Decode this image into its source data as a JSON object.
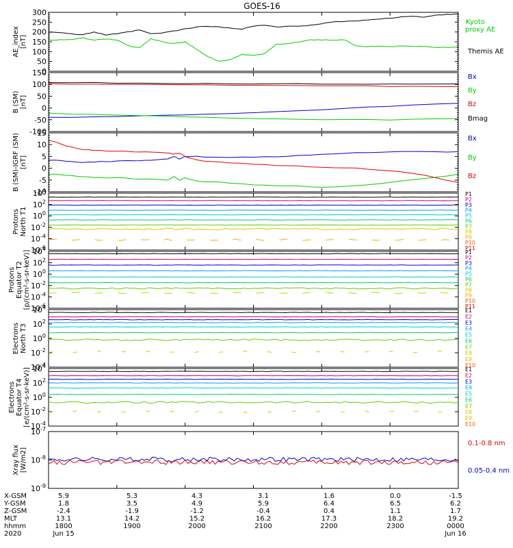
{
  "title": "GOES-16",
  "colors": {
    "black": "#000000",
    "blue": "#0000cc",
    "green": "#00cc00",
    "red": "#dd0000"
  },
  "chart_data": [
    {
      "type": "line",
      "ylabel": [
        "AE_index",
        "[nT]"
      ],
      "ylim": [
        0,
        300
      ],
      "yscale": "linear",
      "ticks": [
        "0",
        "50",
        "100",
        "150",
        "200",
        "250",
        "300"
      ],
      "legend": [
        "Kyoto proxy AE",
        "Themis AE"
      ],
      "x": [
        0,
        10,
        20,
        30,
        40,
        50,
        60,
        70,
        80,
        90,
        100,
        110,
        120,
        130,
        140,
        150,
        160,
        170,
        180,
        190,
        200,
        210,
        220,
        230,
        240,
        250,
        260,
        270,
        280,
        290,
        300,
        310,
        320,
        330,
        340,
        350,
        360
      ],
      "series": [
        {
          "name": "Themis AE",
          "color": "black",
          "values": [
            200,
            198,
            190,
            185,
            200,
            185,
            190,
            200,
            210,
            190,
            195,
            205,
            215,
            225,
            230,
            225,
            220,
            215,
            230,
            235,
            225,
            228,
            230,
            235,
            242,
            250,
            255,
            255,
            262,
            265,
            270,
            278,
            280,
            275,
            285,
            290,
            292
          ]
        },
        {
          "name": "Kyoto proxy AE",
          "color": "green",
          "values": [
            158,
            160,
            160,
            170,
            160,
            165,
            160,
            130,
            120,
            165,
            150,
            140,
            150,
            110,
            75,
            50,
            60,
            85,
            80,
            90,
            135,
            140,
            150,
            160,
            160,
            158,
            160,
            130,
            125,
            128,
            125,
            130,
            125,
            128,
            120,
            122,
            125
          ]
        }
      ]
    },
    {
      "type": "line",
      "ylabel": [
        "B (SM)",
        "[nT]"
      ],
      "ylim": [
        -100,
        150
      ],
      "yscale": "linear",
      "ticks": [
        "-100",
        "-50",
        "0",
        "50",
        "100",
        "150"
      ],
      "legend": [
        "Bx",
        "By",
        "Bz",
        "Bmag"
      ],
      "x": [
        0,
        60,
        120,
        180,
        240,
        300,
        360
      ],
      "series": [
        {
          "name": "Bx",
          "color": "blue",
          "values": [
            -40,
            -36,
            -30,
            -20,
            -8,
            8,
            20
          ]
        },
        {
          "name": "By",
          "color": "green",
          "values": [
            -22,
            -30,
            -38,
            -45,
            -50,
            -50,
            -45
          ]
        },
        {
          "name": "Bz",
          "color": "red",
          "values": [
            103,
            100,
            98,
            96,
            94,
            92,
            90
          ]
        },
        {
          "name": "Bmag",
          "color": "black",
          "values": [
            108,
            106,
            104,
            103,
            102,
            101,
            102
          ]
        }
      ]
    },
    {
      "type": "line",
      "ylabel": [
        "B (SM)-IGRF (SM)",
        "[nT]"
      ],
      "ylim": [
        -10,
        15
      ],
      "yscale": "linear",
      "ticks": [
        "-10",
        "-5",
        "0",
        "5",
        "10",
        "15"
      ],
      "legend": [
        "Bx",
        "By",
        "Bz"
      ],
      "x": [
        0,
        15,
        30,
        45,
        60,
        75,
        90,
        105,
        110,
        115,
        120,
        130,
        150,
        180,
        210,
        240,
        270,
        300,
        330,
        360
      ],
      "series": [
        {
          "name": "Bx",
          "color": "blue",
          "values": [
            3.5,
            3,
            2.5,
            2.8,
            3,
            3.2,
            3.5,
            4,
            5,
            4,
            5,
            5,
            4.5,
            4.8,
            5,
            6,
            6.5,
            7,
            7,
            7
          ]
        },
        {
          "name": "By",
          "color": "green",
          "values": [
            -2.5,
            -3,
            -3.5,
            -4,
            -4,
            -4.5,
            -4.5,
            -5,
            -3.5,
            -5,
            -4,
            -5.5,
            -6,
            -7,
            -7.5,
            -8,
            -7.5,
            -6,
            -4.5,
            -2.5
          ]
        },
        {
          "name": "Bz",
          "color": "red",
          "values": [
            12,
            9.5,
            8,
            7.5,
            7.2,
            7,
            7,
            6.5,
            6,
            6.5,
            5,
            3.5,
            2.5,
            1.8,
            1,
            0.5,
            0,
            -1,
            -3,
            -6
          ]
        }
      ]
    },
    {
      "type": "line",
      "ylabel": [
        "Protons",
        "North T1"
      ],
      "ylim": [
        -6,
        4
      ],
      "yscale": "log",
      "ticks": [
        "10^-6",
        "10^-4",
        "10^-2",
        "10^0",
        "10^2",
        "10^4"
      ],
      "legend": [
        "P1",
        "P2",
        "P3",
        "P4",
        "P5",
        "P6",
        "P7",
        "P8",
        "P9",
        "P10",
        "P11"
      ],
      "series": [
        {
          "name": "P1",
          "values": [
            3.3
          ]
        },
        {
          "name": "P2",
          "values": [
            2.7
          ]
        },
        {
          "name": "P3",
          "values": [
            1.9
          ]
        },
        {
          "name": "P4",
          "values": [
            1.0
          ]
        },
        {
          "name": "P5",
          "values": [
            0.2
          ]
        },
        {
          "name": "P6",
          "values": [
            -0.7
          ]
        },
        {
          "name": "P7",
          "values": [
            -1.6
          ]
        },
        {
          "name": "P8",
          "values": [
            -2.3
          ]
        },
        {
          "name": "P9",
          "values": [
            -4.2
          ]
        }
      ]
    },
    {
      "type": "line",
      "ylabel": [
        "Protons",
        "Equator T2",
        "[p/(cm²-s-sr-keV)]"
      ],
      "ylim": [
        -6,
        4
      ],
      "yscale": "log",
      "ticks": [
        "10^-6",
        "10^-4",
        "10^-2",
        "10^0",
        "10^2",
        "10^4"
      ],
      "legend": [
        "P1",
        "P2",
        "P3",
        "P4",
        "P5",
        "P6",
        "P7",
        "P8",
        "P9",
        "P10",
        "P11"
      ],
      "series": [
        {
          "name": "P1",
          "values": [
            3.6
          ]
        },
        {
          "name": "P2",
          "values": [
            2.6
          ]
        },
        {
          "name": "P3",
          "values": [
            1.6
          ]
        },
        {
          "name": "P4",
          "values": [
            0.6
          ]
        },
        {
          "name": "P5",
          "values": [
            -0.5
          ]
        },
        {
          "name": "P6",
          "values": [
            -1.5
          ]
        },
        {
          "name": "P7",
          "values": [
            -2.5
          ]
        },
        {
          "name": "P8",
          "values": [
            -3.3
          ]
        }
      ]
    },
    {
      "type": "line",
      "ylabel": [
        "Electrons",
        "North T3"
      ],
      "ylim": [
        -4,
        4
      ],
      "yscale": "log",
      "ticks": [
        "10^-4",
        "10^-2",
        "10^0",
        "10^2",
        "10^4"
      ],
      "legend": [
        "E1",
        "E2",
        "E3",
        "E4",
        "E5",
        "E6",
        "E7",
        "E8",
        "E9",
        "E10"
      ],
      "series": [
        {
          "name": "E1",
          "values": [
            3.6
          ]
        },
        {
          "name": "E2",
          "values": [
            3.0
          ]
        },
        {
          "name": "E3",
          "values": [
            2.6
          ]
        },
        {
          "name": "E4",
          "values": [
            2.2
          ]
        },
        {
          "name": "E5",
          "values": [
            1.6
          ]
        },
        {
          "name": "E6",
          "values": [
            0.8
          ]
        },
        {
          "name": "E7",
          "values": [
            -0.2
          ]
        },
        {
          "name": "E8",
          "values": [
            -1.9
          ]
        }
      ]
    },
    {
      "type": "line",
      "ylabel": [
        "Electrons",
        "Equator T4",
        "[e/(cm²-s-sr-keV)]"
      ],
      "ylim": [
        -4,
        4
      ],
      "yscale": "log",
      "ticks": [
        "10^-4",
        "10^-2",
        "10^0",
        "10^2",
        "10^4"
      ],
      "legend": [
        "E1",
        "E2",
        "E3",
        "E4",
        "E5",
        "E6",
        "E7",
        "E8",
        "E9",
        "E10"
      ],
      "series": [
        {
          "name": "E1",
          "values": [
            3.6
          ]
        },
        {
          "name": "E2",
          "values": [
            3.0
          ]
        },
        {
          "name": "E3",
          "values": [
            2.5
          ]
        },
        {
          "name": "E4",
          "values": [
            2.0
          ]
        },
        {
          "name": "E5",
          "values": [
            1.3
          ]
        },
        {
          "name": "E6",
          "values": [
            0.4
          ]
        },
        {
          "name": "E7",
          "values": [
            -0.7
          ]
        },
        {
          "name": "E8",
          "values": [
            -2.0
          ]
        }
      ]
    },
    {
      "type": "line",
      "ylabel": [
        "Xray flux",
        "[W/m2]"
      ],
      "ylim": [
        -9,
        -7
      ],
      "yscale": "log",
      "ticks": [
        "10^-9",
        "10^-8",
        "10^-7"
      ],
      "legend": [
        "0.1-0.8 nm",
        "0.05-0.4 nm"
      ],
      "series": [
        {
          "name": "0.05-0.4 nm",
          "color": "blue",
          "values": [
            -7.98
          ]
        },
        {
          "name": "0.1-0.8 nm",
          "color": "red",
          "values": [
            -8.08
          ]
        }
      ]
    }
  ],
  "footer": {
    "rows": [
      {
        "label": "X-GSM",
        "values": [
          "5.9",
          "5.3",
          "4.3",
          "3.1",
          "1.6",
          "0.0",
          "-1.5"
        ]
      },
      {
        "label": "Y-GSM",
        "values": [
          "1.8",
          "3.5",
          "4.9",
          "5.9",
          "6.4",
          "6.5",
          "6.2"
        ]
      },
      {
        "label": "Z-GSM",
        "values": [
          "-2.4",
          "-1.9",
          "-1.2",
          "-0.4",
          "0.4",
          "1.1",
          "1.7"
        ]
      },
      {
        "label": "MLT",
        "values": [
          "13.1",
          "14.2",
          "15.2",
          "16.2",
          "17.3",
          "18.2",
          "19.2"
        ]
      },
      {
        "label": "hhmm",
        "values": [
          "1800",
          "1900",
          "2000",
          "2100",
          "2200",
          "2300",
          "0000"
        ]
      },
      {
        "label": "2020",
        "values": [
          "Jun 15",
          "",
          "",
          "",
          "",
          "",
          "Jun 16"
        ]
      }
    ]
  }
}
